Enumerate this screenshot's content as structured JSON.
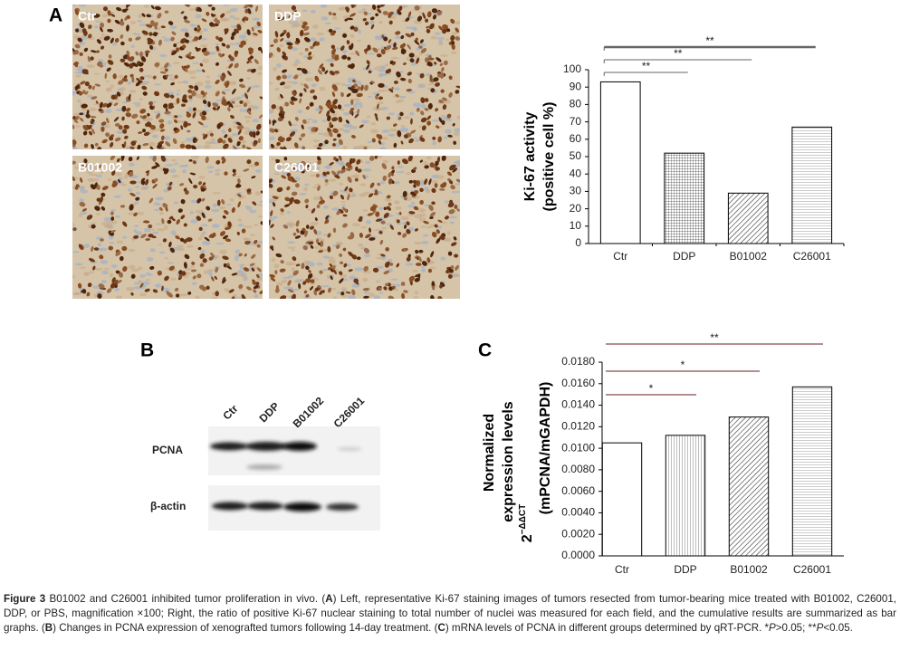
{
  "panel_labels": [
    "A",
    "B",
    "C"
  ],
  "images": {
    "labels": [
      "Ctr",
      "DDP",
      "B01002",
      "C26001"
    ]
  },
  "blot": {
    "lanes": [
      "Ctr",
      "DDP",
      "B01002",
      "C26001"
    ],
    "rows": [
      "PCNA",
      "β-actin"
    ]
  },
  "chart_data": [
    {
      "type": "bar",
      "categories": [
        "Ctr",
        "DDP",
        "B01002",
        "C26001"
      ],
      "values": [
        93,
        52,
        29,
        67
      ],
      "ylim": [
        0,
        100
      ],
      "yticks": [
        0,
        10,
        20,
        30,
        40,
        50,
        60,
        70,
        80,
        90,
        100
      ],
      "ylabel": [
        "Ki-67 activity",
        "(positive cell %)"
      ],
      "patterns": [
        "none",
        "grid",
        "diagonal",
        "horizontal"
      ],
      "annotation_color": "#666666",
      "annotations": [
        {
          "from": "Ctr",
          "to": "DDP",
          "text": "**"
        },
        {
          "from": "Ctr",
          "to": "B01002",
          "text": "**"
        },
        {
          "from": "Ctr",
          "to": "C26001",
          "text": "**"
        }
      ]
    },
    {
      "type": "bar",
      "categories": [
        "Ctr",
        "DDP",
        "B01002",
        "C26001"
      ],
      "values": [
        0.0105,
        0.0112,
        0.0129,
        0.0157
      ],
      "ylim": [
        0,
        0.018
      ],
      "yticks": [
        {
          "value": 0,
          "label": "0.0000"
        },
        {
          "value": 0.002,
          "label": "0.0020"
        },
        {
          "value": 0.004,
          "label": "0.0040"
        },
        {
          "value": 0.006,
          "label": "0.0060"
        },
        {
          "value": 0.008,
          "label": "0.0080"
        },
        {
          "value": 0.01,
          "label": "0.0100"
        },
        {
          "value": 0.012,
          "label": "0.0120"
        },
        {
          "value": 0.014,
          "label": "0.0140"
        },
        {
          "value": 0.016,
          "label": "0.0160"
        },
        {
          "value": 0.018,
          "label": "0.0180"
        }
      ],
      "ylabel": [
        "Normalized",
        "expression levels",
        "(mPCNA/mGAPDH)"
      ],
      "ylabel_base": "2",
      "ylabel_sup": "−ΔΔCT",
      "patterns": [
        "none",
        "vertical",
        "diagonal",
        "horizontal"
      ],
      "annotation_color": "#6b1f1f",
      "annotations": [
        {
          "from": "Ctr",
          "to": "DDP",
          "text": "*"
        },
        {
          "from": "Ctr",
          "to": "B01002",
          "text": "*"
        },
        {
          "from": "Ctr",
          "to": "C26001",
          "text": "**"
        }
      ]
    }
  ],
  "caption": [
    {
      "text": "Figure 3",
      "style": "b"
    },
    {
      "text": " B01002 and C26001 inhibited tumor proliferation in vivo. ("
    },
    {
      "text": "A",
      "style": "b"
    },
    {
      "text": ") Left, representative Ki-67 staining images of tumors resected from tumor-bearing mice treated with B01002, C26001, DDP, or PBS, magnification ×100; Right, the ratio of positive Ki-67 nuclear staining to total number of nuclei was measured for each field, and the cumulative results are summarized as bar graphs. ("
    },
    {
      "text": "B",
      "style": "b"
    },
    {
      "text": ") Changes in PCNA expression of xenografted tumors following 14-day treatment. ("
    },
    {
      "text": "C",
      "style": "b"
    },
    {
      "text": ") mRNA levels of PCNA in different groups determined by qRT-PCR. *"
    },
    {
      "text": "P",
      "style": "i"
    },
    {
      "text": ">0.05; **"
    },
    {
      "text": "P",
      "style": "i"
    },
    {
      "text": "<0.05."
    }
  ]
}
